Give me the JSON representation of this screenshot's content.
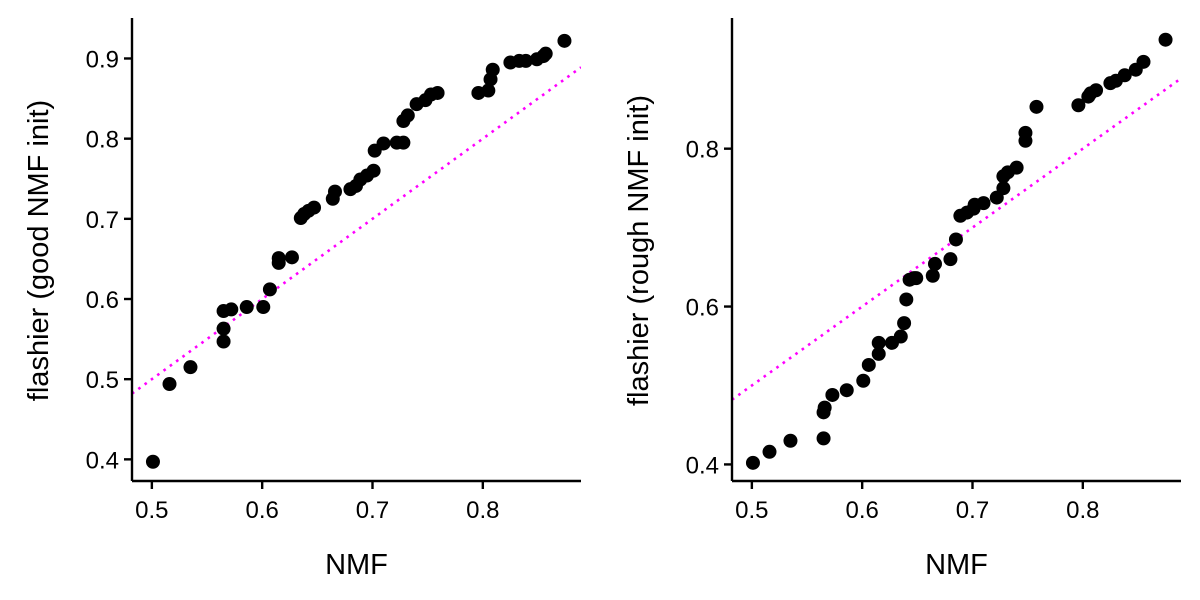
{
  "colors": {
    "points": "#000000",
    "reference_line": "#ff00ff",
    "axis": "#000000",
    "background": "#ffffff"
  },
  "chart_data": [
    {
      "type": "scatter",
      "title": "",
      "xlabel": "NMF",
      "ylabel": "flashier (good NMF init)",
      "xlim": [
        0.482,
        0.889
      ],
      "ylim": [
        0.373,
        0.948
      ],
      "x_ticks": [
        0.5,
        0.6,
        0.7,
        0.8
      ],
      "x_tick_labels": [
        "0.5",
        "0.6",
        "0.7",
        "0.8"
      ],
      "y_ticks": [
        0.4,
        0.5,
        0.6,
        0.7,
        0.8,
        0.9
      ],
      "y_tick_labels": [
        "0.4",
        "0.5",
        "0.6",
        "0.7",
        "0.8",
        "0.9"
      ],
      "grid": false,
      "legend": "none",
      "reference_line": {
        "type": "identity",
        "style": "dotted"
      },
      "series": [
        {
          "points": [
            [
              0.501,
              0.397
            ],
            [
              0.516,
              0.494
            ],
            [
              0.535,
              0.515
            ],
            [
              0.565,
              0.547
            ],
            [
              0.565,
              0.563
            ],
            [
              0.565,
              0.585
            ],
            [
              0.572,
              0.587
            ],
            [
              0.586,
              0.59
            ],
            [
              0.601,
              0.59
            ],
            [
              0.607,
              0.612
            ],
            [
              0.615,
              0.645
            ],
            [
              0.615,
              0.651
            ],
            [
              0.627,
              0.652
            ],
            [
              0.635,
              0.701
            ],
            [
              0.638,
              0.706
            ],
            [
              0.642,
              0.71
            ],
            [
              0.647,
              0.714
            ],
            [
              0.664,
              0.725
            ],
            [
              0.666,
              0.734
            ],
            [
              0.68,
              0.737
            ],
            [
              0.685,
              0.741
            ],
            [
              0.689,
              0.749
            ],
            [
              0.695,
              0.754
            ],
            [
              0.701,
              0.76
            ],
            [
              0.702,
              0.785
            ],
            [
              0.71,
              0.794
            ],
            [
              0.722,
              0.795
            ],
            [
              0.728,
              0.795
            ],
            [
              0.728,
              0.822
            ],
            [
              0.732,
              0.829
            ],
            [
              0.74,
              0.843
            ],
            [
              0.748,
              0.848
            ],
            [
              0.753,
              0.855
            ],
            [
              0.759,
              0.857
            ],
            [
              0.796,
              0.857
            ],
            [
              0.805,
              0.86
            ],
            [
              0.807,
              0.874
            ],
            [
              0.809,
              0.886
            ],
            [
              0.825,
              0.895
            ],
            [
              0.833,
              0.897
            ],
            [
              0.839,
              0.897
            ],
            [
              0.849,
              0.899
            ],
            [
              0.855,
              0.903
            ],
            [
              0.857,
              0.906
            ],
            [
              0.874,
              0.922
            ]
          ]
        }
      ]
    },
    {
      "type": "scatter",
      "title": "",
      "xlabel": "NMF",
      "ylabel": "flashier (rough NMF init)",
      "xlim": [
        0.482,
        0.889
      ],
      "ylim": [
        0.379,
        0.963
      ],
      "x_ticks": [
        0.5,
        0.6,
        0.7,
        0.8
      ],
      "x_tick_labels": [
        "0.5",
        "0.6",
        "0.7",
        "0.8"
      ],
      "y_ticks": [
        0.4,
        0.6,
        0.8
      ],
      "y_tick_labels": [
        "0.4",
        "0.6",
        "0.8"
      ],
      "grid": false,
      "legend": "none",
      "reference_line": {
        "type": "identity",
        "style": "dotted"
      },
      "series": [
        {
          "points": [
            [
              0.501,
              0.402
            ],
            [
              0.516,
              0.416
            ],
            [
              0.535,
              0.43
            ],
            [
              0.565,
              0.433
            ],
            [
              0.565,
              0.466
            ],
            [
              0.566,
              0.472
            ],
            [
              0.573,
              0.488
            ],
            [
              0.586,
              0.494
            ],
            [
              0.601,
              0.506
            ],
            [
              0.606,
              0.526
            ],
            [
              0.615,
              0.54
            ],
            [
              0.615,
              0.554
            ],
            [
              0.627,
              0.554
            ],
            [
              0.635,
              0.562
            ],
            [
              0.638,
              0.579
            ],
            [
              0.64,
              0.609
            ],
            [
              0.643,
              0.634
            ],
            [
              0.647,
              0.636
            ],
            [
              0.649,
              0.636
            ],
            [
              0.664,
              0.639
            ],
            [
              0.666,
              0.654
            ],
            [
              0.68,
              0.66
            ],
            [
              0.685,
              0.685
            ],
            [
              0.689,
              0.715
            ],
            [
              0.695,
              0.719
            ],
            [
              0.701,
              0.724
            ],
            [
              0.702,
              0.729
            ],
            [
              0.71,
              0.731
            ],
            [
              0.722,
              0.738
            ],
            [
              0.728,
              0.75
            ],
            [
              0.728,
              0.765
            ],
            [
              0.732,
              0.77
            ],
            [
              0.74,
              0.776
            ],
            [
              0.748,
              0.81
            ],
            [
              0.748,
              0.82
            ],
            [
              0.758,
              0.853
            ],
            [
              0.796,
              0.855
            ],
            [
              0.805,
              0.866
            ],
            [
              0.807,
              0.87
            ],
            [
              0.812,
              0.874
            ],
            [
              0.825,
              0.883
            ],
            [
              0.83,
              0.886
            ],
            [
              0.838,
              0.893
            ],
            [
              0.848,
              0.9
            ],
            [
              0.855,
              0.91
            ],
            [
              0.875,
              0.938
            ]
          ]
        }
      ]
    }
  ]
}
